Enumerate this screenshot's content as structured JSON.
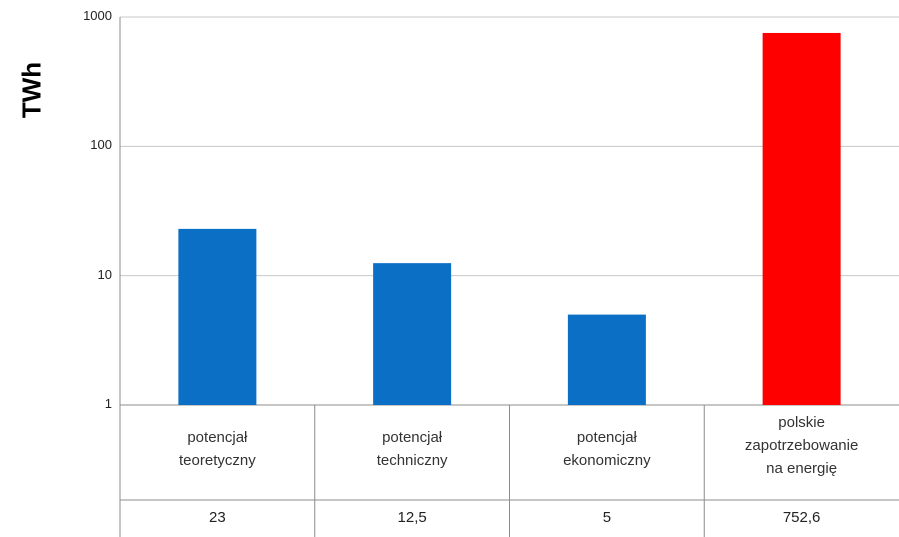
{
  "chart_data": {
    "type": "bar",
    "ylabel": "TWh",
    "yscale": "log",
    "ylim": [
      1,
      1000
    ],
    "yticks": [
      "1",
      "10",
      "100",
      "1000"
    ],
    "grid": "horizontal",
    "categories": [
      [
        "potencjał",
        "teoretyczny"
      ],
      [
        "potencjał",
        "techniczny"
      ],
      [
        "potencjał",
        "ekonomiczny"
      ],
      [
        "polskie",
        "zapotrzebowanie",
        "na energię"
      ]
    ],
    "values": [
      23,
      12.5,
      5,
      752.6
    ],
    "value_labels": [
      "23",
      "12,5",
      "5",
      "752,6"
    ],
    "colors": [
      "#0b6fc6",
      "#0b6fc6",
      "#0b6fc6",
      "#ff0000"
    ],
    "data_table": true
  }
}
